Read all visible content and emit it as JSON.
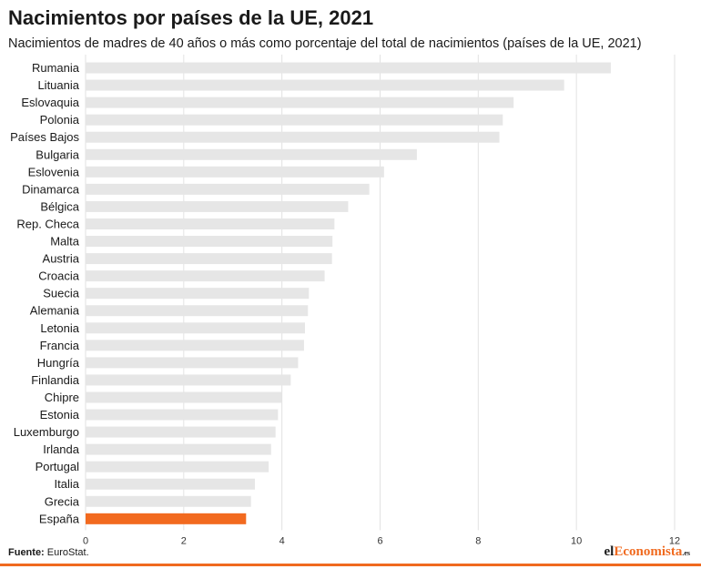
{
  "title": "Nacimientos por países de la UE, 2021",
  "subtitle": "Nacimientos de madres de 40 años o más como porcentaje del total de nacimientos (países de la UE, 2021)",
  "source": {
    "label": "Fuente:",
    "text": " EuroStat."
  },
  "logo": {
    "part1": "el",
    "part2": "Economista",
    "part3": ".es"
  },
  "colors": {
    "bar": "#e6e6e6",
    "highlight": "#f26a1f",
    "grid": "#e2e2e2",
    "text": "#1a1a1a"
  },
  "chart_data": {
    "type": "bar",
    "orientation": "horizontal",
    "title": "Nacimientos por países de la UE, 2021",
    "subtitle": "Nacimientos de madres de 40 años o más como porcentaje del total de nacimientos (países de la UE, 2021)",
    "categories": [
      "Rumania",
      "Lituania",
      "Eslovaquia",
      "Polonia",
      "Países Bajos",
      "Bulgaria",
      "Eslovenia",
      "Dinamarca",
      "Bélgica",
      "Rep. Checa",
      "Malta",
      "Austria",
      "Croacia",
      "Suecia",
      "Alemania",
      "Letonia",
      "Francia",
      "Hungría",
      "Finlandia",
      "Chipre",
      "Estonia",
      "Luxemburgo",
      "Irlanda",
      "Portugal",
      "Italia",
      "Grecia",
      "España"
    ],
    "values": [
      10.7,
      9.75,
      8.72,
      8.5,
      8.43,
      6.75,
      6.08,
      5.78,
      5.35,
      5.07,
      5.03,
      5.02,
      4.87,
      4.55,
      4.53,
      4.47,
      4.45,
      4.33,
      4.18,
      4.0,
      3.92,
      3.87,
      3.78,
      3.73,
      3.45,
      3.37,
      3.27
    ],
    "highlight": "España",
    "xlim": [
      0,
      12
    ],
    "xticks": [
      0,
      2,
      4,
      6,
      8,
      10,
      12
    ],
    "grid": true
  }
}
